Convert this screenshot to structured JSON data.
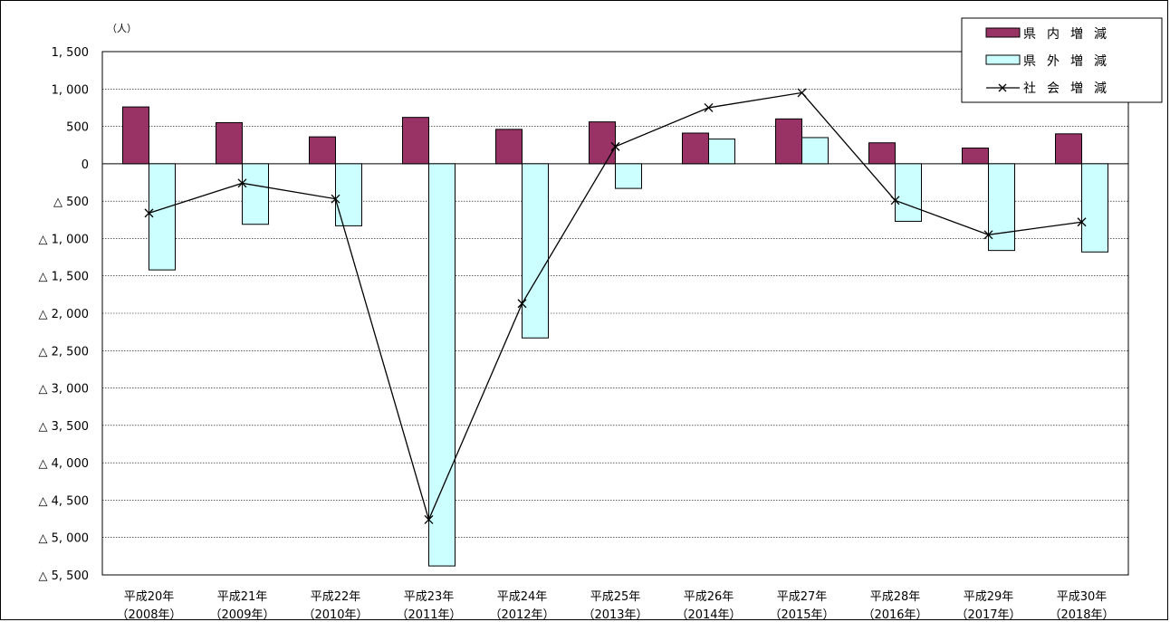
{
  "chart_data": {
    "type": "bar",
    "unit_label": "（人）",
    "categories": [
      [
        "平成20年",
        "（2008年）"
      ],
      [
        "平成21年",
        "（2009年）"
      ],
      [
        "平成22年",
        "（2010年）"
      ],
      [
        "平成23年",
        "（2011年）"
      ],
      [
        "平成24年",
        "（2012年）"
      ],
      [
        "平成25年",
        "（2013年）"
      ],
      [
        "平成26年",
        "（2014年）"
      ],
      [
        "平成27年",
        "（2015年）"
      ],
      [
        "平成28年",
        "（2016年）"
      ],
      [
        "平成29年",
        "（2017年）"
      ],
      [
        "平成30年",
        "（2018年）"
      ]
    ],
    "series": [
      {
        "name": "県内増減",
        "kind": "bar",
        "color": "#993366",
        "values": [
          760,
          550,
          360,
          620,
          460,
          560,
          410,
          600,
          280,
          210,
          400
        ]
      },
      {
        "name": "県外増減",
        "kind": "bar",
        "color": "#ccffff",
        "values": [
          -1420,
          -810,
          -830,
          -5380,
          -2330,
          -330,
          330,
          350,
          -770,
          -1160,
          -1180
        ]
      },
      {
        "name": "社会増減",
        "kind": "line",
        "color": "#000000",
        "values": [
          -660,
          -260,
          -470,
          -4760,
          -1870,
          230,
          750,
          950,
          -490,
          -950,
          -780
        ]
      }
    ],
    "ylim": [
      -5500,
      1500
    ],
    "ytick_step": 500,
    "yticks": [
      "1, 500",
      "1, 000",
      "500",
      "0",
      "△ 500",
      "△ 1, 000",
      "△ 1, 500",
      "△ 2, 000",
      "△ 2, 500",
      "△ 3, 000",
      "△ 3, 500",
      "△ 4, 000",
      "△ 4, 500",
      "△ 5, 000",
      "△ 5, 500"
    ],
    "legend": [
      "県内増減",
      "県外増減",
      "社会増減"
    ],
    "legend_position": "top-right",
    "grid": true
  }
}
